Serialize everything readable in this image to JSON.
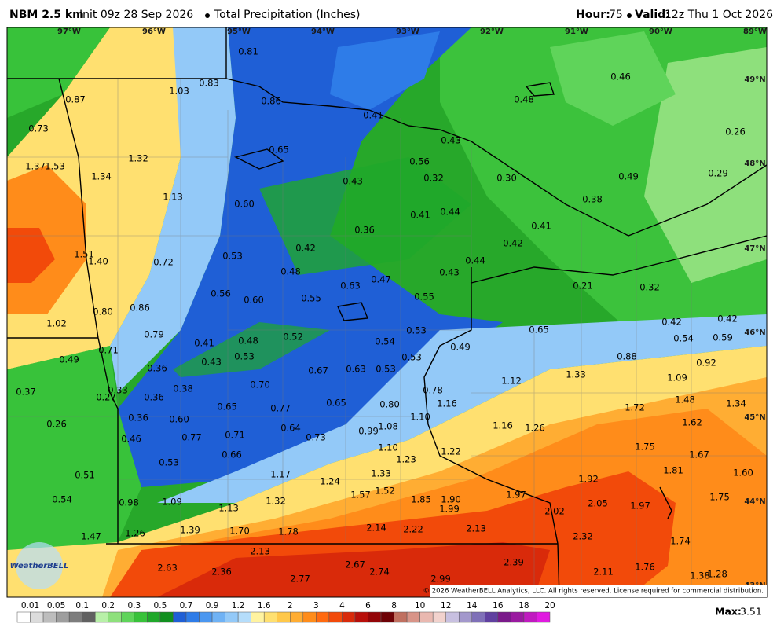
{
  "header": {
    "model": "NBM 2.5 km",
    "init": "Init 09z 28 Sep 2026",
    "field": "Total Precipitation (Inches)",
    "hour_label": "Hour:",
    "hour": "75",
    "valid_label": "Valid:",
    "valid": "12z Thu 1 Oct 2026"
  },
  "map": {
    "longitudes": [
      "97°W",
      "96°W",
      "95°W",
      "94°W",
      "93°W",
      "92°W",
      "91°W",
      "90°W",
      "89°W"
    ],
    "latitudes": [
      "49°N",
      "48°N",
      "47°N",
      "46°N",
      "45°N",
      "44°N",
      "43°N"
    ],
    "point_values": [
      "0.81",
      "0.83",
      "1.03",
      "0.87",
      "0.86",
      "0.41",
      "0.48",
      "0.46",
      "0.73",
      "0.43",
      "0.26",
      "0.65",
      "1.32",
      "1.37",
      "1.53",
      "1.34",
      "0.56",
      "0.32",
      "0.30",
      "0.43",
      "0.49",
      "0.29",
      "1.13",
      "0.38",
      "0.60",
      "0.41",
      "0.44",
      "0.41",
      "0.36",
      "0.42",
      "0.42",
      "0.53",
      "1.51",
      "1.40",
      "0.72",
      "0.44",
      "0.48",
      "0.43",
      "0.47",
      "0.63",
      "0.21",
      "0.32",
      "0.56",
      "0.60",
      "0.55",
      "0.55",
      "0.86",
      "0.80",
      "1.02",
      "0.79",
      "0.53",
      "0.42",
      "0.42",
      "0.52",
      "0.41",
      "0.48",
      "0.54",
      "0.65",
      "0.54",
      "0.59",
      "0.71",
      "0.49",
      "0.53",
      "0.43",
      "0.53",
      "0.88",
      "0.92",
      "0.49",
      "0.36",
      "0.67",
      "0.63",
      "0.53",
      "1.33",
      "1.09",
      "1.12",
      "0.38",
      "0.70",
      "0.33",
      "0.78",
      "0.37",
      "0.27",
      "0.36",
      "0.65",
      "0.80",
      "1.16",
      "1.48",
      "1.34",
      "0.65",
      "0.77",
      "1.72",
      "0.36",
      "0.60",
      "1.10",
      "0.26",
      "0.64",
      "1.08",
      "1.16",
      "1.26",
      "1.62",
      "0.99",
      "0.77",
      "0.71",
      "0.73",
      "0.46",
      "1.10",
      "1.75",
      "1.22",
      "1.67",
      "0.66",
      "1.23",
      "0.53",
      "0.51",
      "1.17",
      "1.33",
      "1.81",
      "1.60",
      "1.24",
      "1.92",
      "1.52",
      "1.57",
      "0.54",
      "1.85",
      "1.90",
      "1.97",
      "1.75",
      "0.98",
      "1.09",
      "1.32",
      "2.05",
      "1.99",
      "1.97",
      "1.13",
      "2.02",
      "2.14",
      "2.22",
      "2.13",
      "1.26",
      "1.39",
      "1.70",
      "1.78",
      "1.47",
      "2.32",
      "1.74",
      "2.13",
      "2.39",
      "2.67",
      "2.63",
      "2.36",
      "2.74",
      "2.11",
      "1.76",
      "1.38",
      "1.28",
      "2.77",
      "2.99"
    ],
    "logo": "WeatherBELL",
    "copyright": "© 2026 WeatherBELL Analytics, LLC. All rights reserved. License required for commercial distribution."
  },
  "legend": {
    "labels": [
      "0.01",
      "0.05",
      "0.1",
      "0.2",
      "0.3",
      "0.5",
      "0.7",
      "0.9",
      "1.2",
      "1.6",
      "2",
      "3",
      "4",
      "6",
      "8",
      "10",
      "12",
      "14",
      "16",
      "18",
      "20"
    ],
    "colors": [
      "#ffffff",
      "#dcdcdc",
      "#bdbdbd",
      "#9e9e9e",
      "#7d7d7d",
      "#616161",
      "#b8f0a8",
      "#8ee07c",
      "#5fd45a",
      "#38c23a",
      "#1fa82a",
      "#118f1f",
      "#1f5fd6",
      "#2e7ce8",
      "#4b97f0",
      "#6fb2f5",
      "#93c9f8",
      "#b5ddfb",
      "#fff3a0",
      "#ffe070",
      "#ffc84a",
      "#ffad33",
      "#ff8c1a",
      "#ff6a10",
      "#f24a0a",
      "#d92a0a",
      "#b80f0a",
      "#930508",
      "#6e0206",
      "#c07060",
      "#d89488",
      "#e9b8b0",
      "#f2d2cd",
      "#c8c0e0",
      "#a398cc",
      "#7f70b8",
      "#6040a0",
      "#7a1a8a",
      "#9a1aa0",
      "#c01ac0",
      "#e01ae0"
    ],
    "max_label": "Max:",
    "max": "3.51"
  }
}
